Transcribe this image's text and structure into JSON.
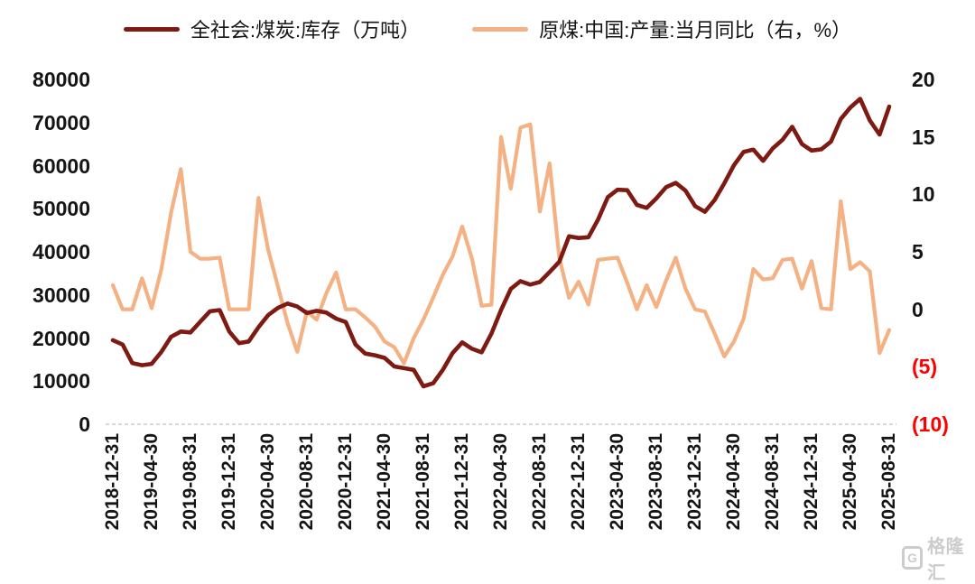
{
  "legend": {
    "items": [
      {
        "label": "全社会:煤炭:库存（万吨）",
        "color": "#7E1A12",
        "series": "inventory"
      },
      {
        "label": "原煤:中国:产量:当月同比（右，%）",
        "color": "#F4B183",
        "series": "yoy"
      }
    ]
  },
  "y_axis_left": {
    "ticks": [
      {
        "label": "0",
        "value": 0
      },
      {
        "label": "10000",
        "value": 10000
      },
      {
        "label": "20000",
        "value": 20000
      },
      {
        "label": "30000",
        "value": 30000
      },
      {
        "label": "40000",
        "value": 40000
      },
      {
        "label": "50000",
        "value": 50000
      },
      {
        "label": "60000",
        "value": 60000
      },
      {
        "label": "70000",
        "value": 70000
      },
      {
        "label": "80000",
        "value": 80000
      }
    ]
  },
  "y_axis_right": {
    "ticks": [
      {
        "label": "20",
        "value": 20,
        "negative": false
      },
      {
        "label": "15",
        "value": 15,
        "negative": false
      },
      {
        "label": "10",
        "value": 10,
        "negative": false
      },
      {
        "label": "5",
        "value": 5,
        "negative": false
      },
      {
        "label": "0",
        "value": 0,
        "negative": false
      },
      {
        "label": "(5)",
        "value": -5,
        "negative": true
      },
      {
        "label": "(10)",
        "value": -10,
        "negative": true
      }
    ]
  },
  "x_axis": {
    "tick_labels": [
      "2018-12-31",
      "2019-04-30",
      "2019-08-31",
      "2019-12-31",
      "2020-04-30",
      "2020-08-31",
      "2020-12-31",
      "2021-04-30",
      "2021-08-31",
      "2021-12-31",
      "2022-04-30",
      "2022-08-31",
      "2022-12-31",
      "2023-04-30",
      "2023-08-31",
      "2023-12-31",
      "2024-04-30",
      "2024-08-31",
      "2024-12-31",
      "2025-04-30",
      "2025-08-31"
    ]
  },
  "watermark": {
    "logo_letter": "G",
    "text": "格隆汇"
  },
  "chart_data": {
    "type": "line",
    "frequency": "monthly",
    "x_start": "2018-12",
    "x_end": "2025-08",
    "x_tick_labels": [
      "2018-12-31",
      "2019-04-30",
      "2019-08-31",
      "2019-12-31",
      "2020-04-30",
      "2020-08-31",
      "2020-12-31",
      "2021-04-30",
      "2021-08-31",
      "2021-12-31",
      "2022-04-30",
      "2022-08-31",
      "2022-12-31",
      "2023-04-30",
      "2023-08-31",
      "2023-12-31",
      "2024-04-30",
      "2024-08-31",
      "2024-12-31",
      "2025-04-30",
      "2025-08-31"
    ],
    "left_ylim": [
      0,
      80000
    ],
    "right_ylim": [
      -10,
      20
    ],
    "grid": false,
    "legend_position": "top-center",
    "series": [
      {
        "name": "全社会:煤炭:库存（万吨）",
        "axis": "left",
        "color": "#7E1A12",
        "values": [
          19500,
          18500,
          14200,
          13700,
          14000,
          16800,
          20300,
          21500,
          21300,
          23800,
          26200,
          26500,
          21500,
          18800,
          19200,
          22500,
          25300,
          27000,
          28000,
          27300,
          25800,
          26300,
          25900,
          24500,
          23700,
          18500,
          16400,
          16000,
          15400,
          13400,
          13000,
          12600,
          8800,
          9500,
          12600,
          16500,
          19000,
          17500,
          16700,
          21000,
          26500,
          31400,
          33200,
          32400,
          33000,
          35300,
          37700,
          43600,
          43200,
          43400,
          47500,
          52700,
          54400,
          54300,
          50900,
          50200,
          52400,
          55000,
          56000,
          54200,
          50600,
          49300,
          52000,
          55900,
          60100,
          63200,
          63700,
          61100,
          64000,
          66000,
          69000,
          65000,
          63500,
          63800,
          65600,
          70800,
          73500,
          75500,
          70500,
          67200,
          73700
        ]
      },
      {
        "name": "原煤:中国:产量:当月同比（右，%）",
        "axis": "right",
        "color": "#F4B183",
        "values": [
          2.1,
          0.0,
          0.0,
          2.7,
          0.1,
          3.5,
          8.4,
          12.2,
          5.0,
          4.4,
          4.4,
          4.5,
          0.0,
          0.0,
          0.0,
          9.7,
          5.2,
          2.0,
          -1.2,
          -3.7,
          -0.2,
          -0.9,
          1.4,
          3.2,
          0.0,
          0.0,
          -0.7,
          -1.5,
          -2.8,
          -3.3,
          -4.7,
          -2.5,
          -0.9,
          1.0,
          3.0,
          4.6,
          7.2,
          4.4,
          0.3,
          0.4,
          15.0,
          10.5,
          15.8,
          16.1,
          8.5,
          12.7,
          4.5,
          1.0,
          2.4,
          0.4,
          4.3,
          4.4,
          4.5,
          2.3,
          0.0,
          2.1,
          0.2,
          2.5,
          4.5,
          1.8,
          0.0,
          -0.2,
          -2.1,
          -4.1,
          -2.8,
          -0.8,
          3.5,
          2.6,
          2.7,
          4.3,
          4.4,
          1.8,
          4.2,
          0.1,
          0.0,
          9.4,
          3.5,
          4.1,
          3.3,
          -3.8,
          -1.8
        ]
      }
    ]
  }
}
